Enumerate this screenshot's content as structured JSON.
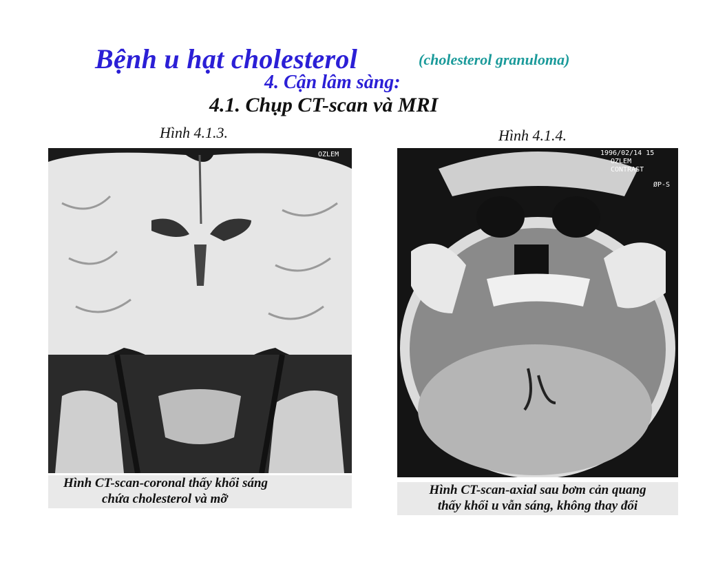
{
  "header": {
    "title": "Bệnh u hạt cholesterol",
    "title_en": "(cholesterol granuloma)",
    "section": "4. Cận lâm sàng:",
    "subsection": "4.1.  Chụp CT-scan  và MRI"
  },
  "colors": {
    "title_blue": "#2b1fd6",
    "subtitle_teal": "#1a9a9a",
    "caption_bg": "#e9e9e9"
  },
  "figures": [
    {
      "label": "Hình 4.1.3.",
      "overlay": {
        "top_right": "OZLEM"
      },
      "caption_line1": "Hình CT-scan-coronal thấy khối sáng",
      "caption_line2": "chứa cholesterol và mỡ"
    },
    {
      "label": "Hình 4.1.4.",
      "overlay": {
        "date": "1996/02/14 15",
        "name": "OZLEM",
        "contrast": "CONTRAST",
        "orientation": "ØP-S"
      },
      "caption_line1": "Hình CT-scan-axial sau bơm cản quang",
      "caption_line2": "thấy khối u vẫn sáng, không thay đổi"
    }
  ]
}
